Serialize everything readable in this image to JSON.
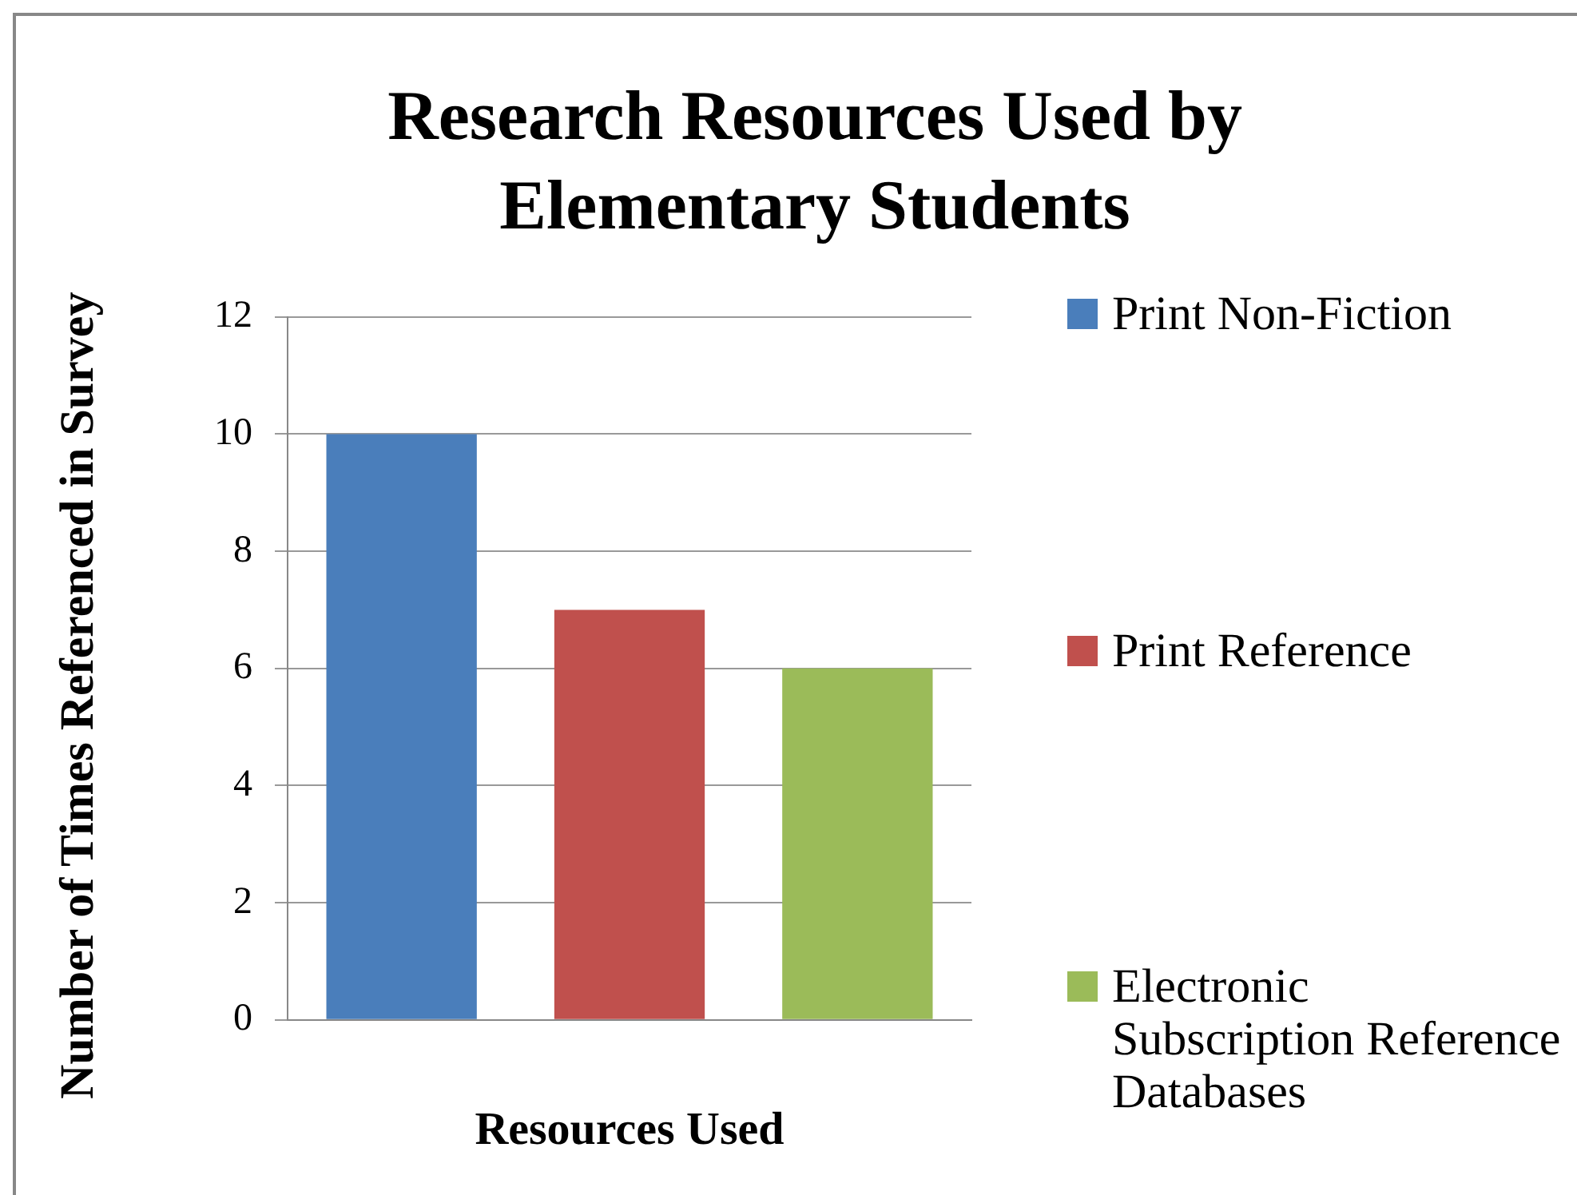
{
  "chart_data": {
    "type": "bar",
    "title": "Research Resources Used by Elementary Students",
    "xlabel": "Resources Used",
    "ylabel": "Number of Times Referenced in Survey",
    "categories": [
      null
    ],
    "series": [
      {
        "name": "Print Non-Fiction",
        "color": "#4a7ebb",
        "values": [
          10
        ]
      },
      {
        "name": "Print Reference",
        "color": "#c0504d",
        "values": [
          7
        ]
      },
      {
        "name": "Electronic Subscription Reference Databases",
        "color": "#9bbb59",
        "values": [
          6
        ]
      }
    ],
    "ylim": [
      0,
      12
    ],
    "yticks": [
      0,
      2,
      4,
      6,
      8,
      10,
      12
    ],
    "grid": "y",
    "legend": "right"
  }
}
